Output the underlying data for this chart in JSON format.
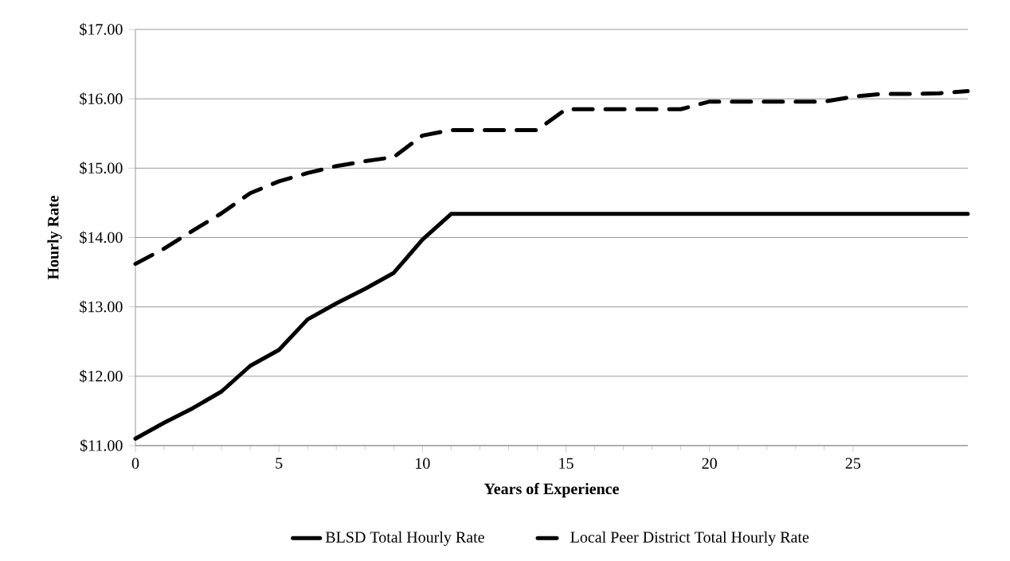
{
  "chart_data": {
    "type": "line",
    "xlabel": "Years of Experience",
    "ylabel": "Hourly Rate",
    "x": [
      0,
      1,
      2,
      3,
      4,
      5,
      6,
      7,
      8,
      9,
      10,
      11,
      12,
      13,
      14,
      15,
      16,
      17,
      18,
      19,
      20,
      21,
      22,
      23,
      24,
      25,
      26,
      27,
      28,
      29
    ],
    "series": [
      {
        "name": "BLSD Total Hourly Rate",
        "color": "#000000",
        "line_style": "solid",
        "values": [
          11.1,
          11.33,
          11.54,
          11.78,
          12.15,
          12.38,
          12.82,
          13.05,
          13.26,
          13.49,
          13.97,
          14.34,
          14.34,
          14.34,
          14.34,
          14.34,
          14.34,
          14.34,
          14.34,
          14.34,
          14.34,
          14.34,
          14.34,
          14.34,
          14.34,
          14.34,
          14.34,
          14.34,
          14.34,
          14.34
        ]
      },
      {
        "name": "Local Peer District Total Hourly Rate",
        "color": "#000000",
        "line_style": "dashed",
        "values": [
          13.62,
          13.84,
          14.1,
          14.35,
          14.64,
          14.81,
          14.93,
          15.03,
          15.1,
          15.16,
          15.47,
          15.55,
          15.55,
          15.55,
          15.55,
          15.85,
          15.85,
          15.85,
          15.85,
          15.85,
          15.96,
          15.96,
          15.96,
          15.96,
          15.96,
          16.03,
          16.07,
          16.07,
          16.08,
          16.11
        ]
      }
    ],
    "xlim": [
      0,
      29
    ],
    "xticks": [
      0,
      5,
      10,
      15,
      20,
      25
    ],
    "ylim": [
      11,
      17
    ],
    "yticks": [
      {
        "value": 11,
        "label": "$11.00"
      },
      {
        "value": 12,
        "label": "$12.00"
      },
      {
        "value": 13,
        "label": "$13.00"
      },
      {
        "value": 14,
        "label": "$14.00"
      },
      {
        "value": 15,
        "label": "$15.00"
      },
      {
        "value": 16,
        "label": "$16.00"
      },
      {
        "value": 17,
        "label": "$17.00"
      }
    ],
    "grid": "y",
    "legend": "bottom",
    "marker": "none"
  }
}
